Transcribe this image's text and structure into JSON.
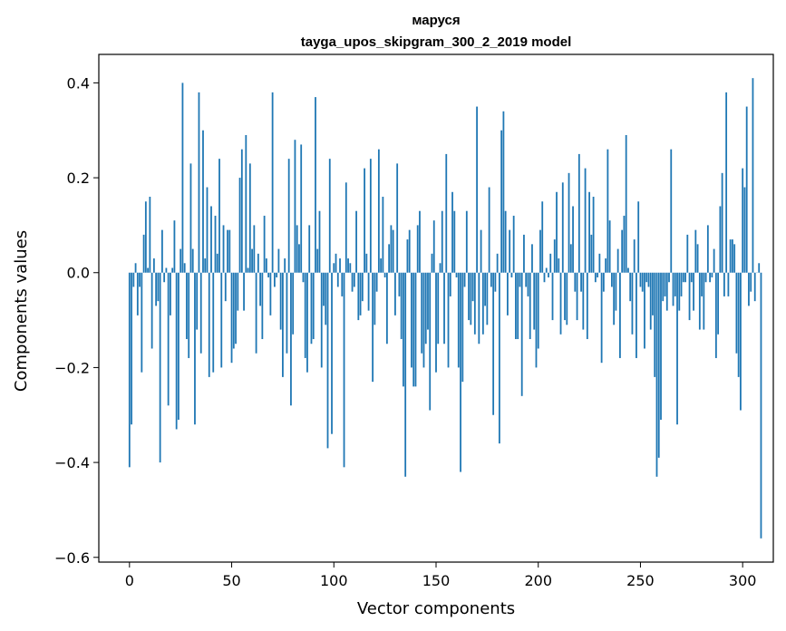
{
  "chart_data": {
    "type": "bar",
    "title_line1": "маруся",
    "title_line2": "tayga_upos_skipgram_300_2_2019 model",
    "xlabel": "Vector components",
    "ylabel": "Components values",
    "xlim": [
      -15,
      315
    ],
    "ylim": [
      -0.61,
      0.46
    ],
    "x_ticks": [
      0,
      50,
      100,
      150,
      200,
      250,
      300
    ],
    "x_tick_labels": [
      "0",
      "50",
      "100",
      "150",
      "200",
      "250",
      "300"
    ],
    "y_ticks": [
      -0.6,
      -0.4,
      -0.2,
      0.0,
      0.2,
      0.4
    ],
    "y_tick_labels": [
      "−0.6",
      "−0.4",
      "−0.2",
      "0.0",
      "0.2",
      "0.4"
    ],
    "bar_color": "#1f77b4",
    "values": [
      -0.41,
      -0.32,
      -0.03,
      0.02,
      -0.09,
      -0.03,
      -0.21,
      0.08,
      0.15,
      0.01,
      0.16,
      -0.16,
      0.03,
      -0.07,
      -0.06,
      -0.4,
      0.09,
      -0.02,
      0.01,
      -0.28,
      -0.09,
      0.01,
      0.11,
      -0.33,
      -0.31,
      0.05,
      0.4,
      0.02,
      -0.14,
      -0.18,
      0.23,
      0.05,
      -0.32,
      -0.12,
      0.38,
      -0.17,
      0.3,
      0.03,
      0.18,
      -0.22,
      0.14,
      -0.21,
      0.12,
      0.04,
      0.24,
      -0.2,
      0.1,
      -0.06,
      0.09,
      0.09,
      -0.19,
      -0.16,
      -0.15,
      -0.08,
      0.2,
      0.26,
      -0.08,
      0.29,
      0.01,
      0.23,
      0.05,
      0.1,
      -0.17,
      0.04,
      -0.07,
      -0.14,
      0.12,
      0.03,
      -0.01,
      -0.09,
      0.38,
      -0.03,
      -0.01,
      0.05,
      -0.12,
      -0.22,
      0.03,
      -0.17,
      0.24,
      -0.28,
      -0.13,
      0.28,
      0.1,
      0.06,
      0.27,
      -0.02,
      -0.18,
      -0.21,
      0.1,
      -0.15,
      -0.14,
      0.37,
      0.05,
      0.13,
      -0.2,
      -0.07,
      -0.11,
      -0.37,
      0.24,
      -0.34,
      0.02,
      0.04,
      -0.03,
      0.03,
      -0.05,
      -0.41,
      0.19,
      0.03,
      0.02,
      -0.04,
      -0.03,
      0.13,
      -0.1,
      -0.09,
      -0.06,
      0.22,
      0.04,
      -0.08,
      0.24,
      -0.23,
      -0.11,
      -0.04,
      0.26,
      0.03,
      0.16,
      -0.01,
      -0.15,
      0.06,
      0.1,
      0.09,
      -0.09,
      0.23,
      -0.05,
      -0.14,
      -0.24,
      -0.43,
      0.07,
      0.09,
      -0.2,
      -0.24,
      -0.24,
      0.1,
      0.13,
      -0.17,
      -0.2,
      -0.15,
      -0.12,
      -0.29,
      0.04,
      0.11,
      -0.21,
      -0.15,
      0.02,
      0.13,
      -0.15,
      0.25,
      -0.2,
      -0.05,
      0.17,
      0.13,
      -0.01,
      -0.2,
      -0.42,
      -0.23,
      -0.03,
      0.13,
      -0.1,
      -0.11,
      -0.06,
      -0.13,
      0.35,
      -0.15,
      0.09,
      -0.13,
      -0.07,
      -0.11,
      0.18,
      -0.03,
      -0.3,
      -0.04,
      0.04,
      -0.36,
      0.3,
      0.34,
      0.13,
      -0.09,
      0.09,
      -0.01,
      0.12,
      -0.14,
      -0.14,
      -0.03,
      -0.26,
      0.08,
      -0.03,
      -0.05,
      -0.14,
      0.06,
      -0.12,
      -0.2,
      -0.16,
      0.09,
      0.15,
      -0.02,
      0.01,
      -0.01,
      0.04,
      -0.1,
      0.07,
      0.17,
      0.03,
      -0.13,
      0.19,
      -0.1,
      -0.11,
      0.21,
      0.06,
      0.14,
      -0.04,
      -0.1,
      0.25,
      -0.04,
      -0.12,
      0.22,
      -0.14,
      0.17,
      0.08,
      0.16,
      -0.02,
      -0.01,
      0.04,
      -0.19,
      -0.04,
      0.03,
      0.26,
      0.11,
      -0.03,
      -0.11,
      -0.08,
      0.05,
      -0.18,
      0.09,
      0.12,
      0.29,
      0.01,
      -0.06,
      -0.13,
      0.07,
      -0.18,
      0.15,
      -0.03,
      -0.04,
      -0.16,
      -0.02,
      -0.03,
      -0.12,
      -0.09,
      -0.22,
      -0.43,
      -0.39,
      -0.31,
      -0.06,
      -0.05,
      -0.08,
      -0.02,
      0.26,
      -0.07,
      -0.05,
      -0.32,
      -0.08,
      -0.05,
      -0.02,
      -0.02,
      0.08,
      -0.1,
      -0.02,
      -0.08,
      0.09,
      0.06,
      -0.12,
      -0.05,
      -0.12,
      -0.02,
      0.1,
      -0.02,
      -0.01,
      0.05,
      -0.18,
      -0.13,
      0.14,
      0.21,
      -0.05,
      0.38,
      -0.05,
      0.07,
      0.07,
      0.06,
      -0.17,
      -0.22,
      -0.29,
      0.22,
      0.18,
      0.35,
      -0.07,
      -0.04,
      0.41,
      -0.06,
      0.0,
      0.02,
      -0.56
    ]
  }
}
